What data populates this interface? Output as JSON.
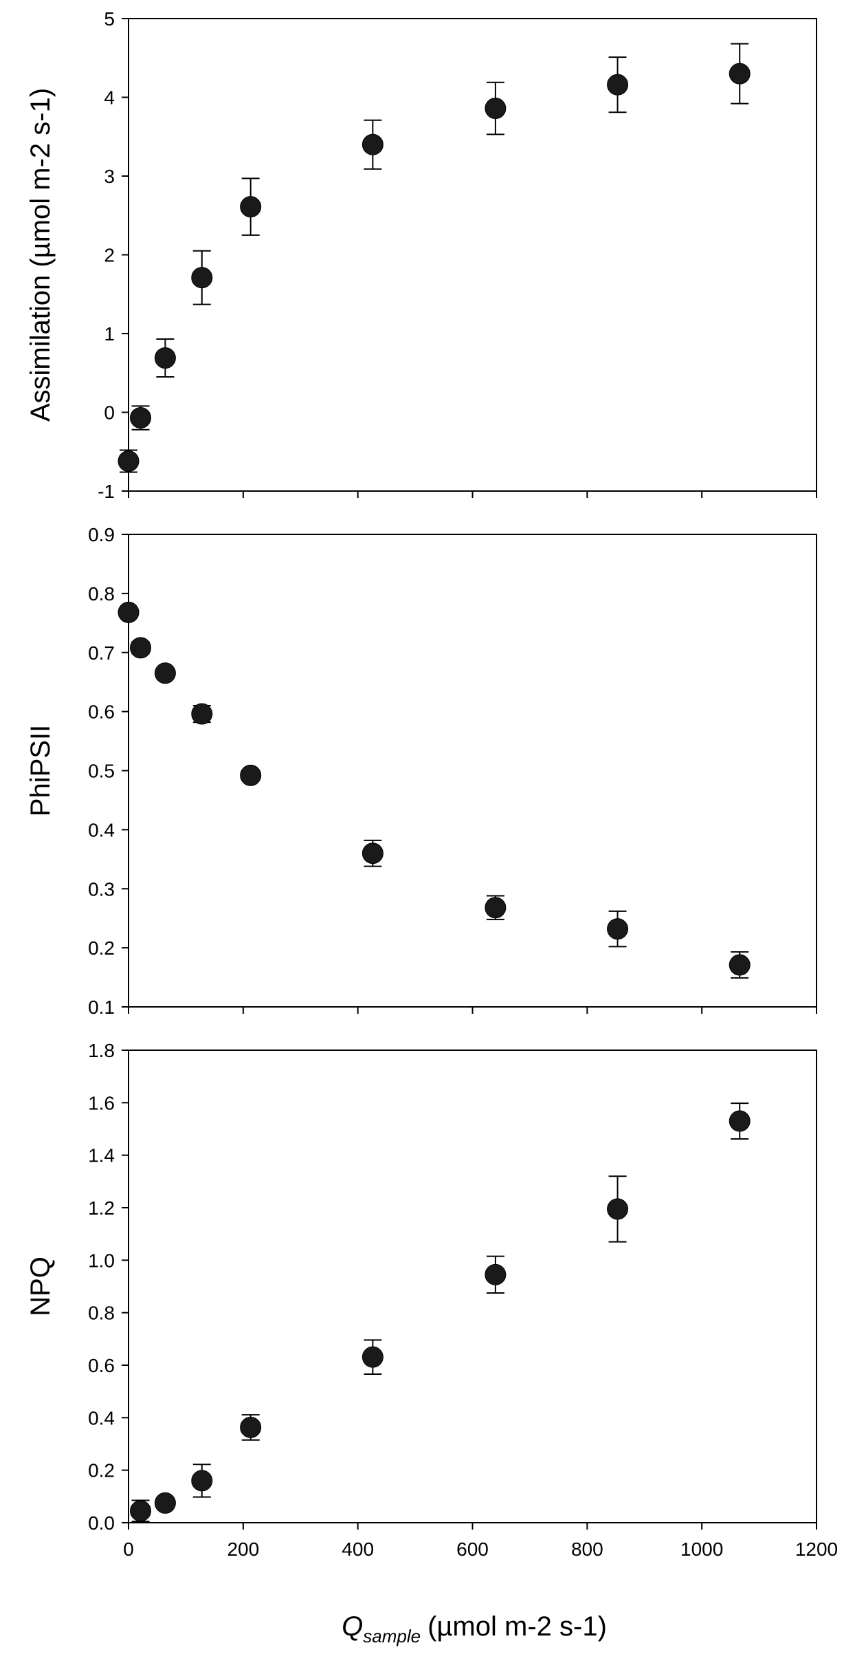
{
  "chart_data": [
    {
      "type": "scatter",
      "ylabel": "Assimilation (µmol m-2 s-1)",
      "xlim": [
        0,
        1200
      ],
      "ylim": [
        -1,
        5
      ],
      "yticks": [
        "-1",
        "0",
        "1",
        "2",
        "3",
        "4",
        "5"
      ],
      "xticks": [],
      "x": [
        0,
        21,
        64,
        128,
        213,
        426,
        640,
        853,
        1066
      ],
      "y": [
        -0.62,
        -0.07,
        0.69,
        1.71,
        2.61,
        3.4,
        3.86,
        4.16,
        4.3
      ],
      "yerr": [
        0.14,
        0.15,
        0.24,
        0.34,
        0.36,
        0.31,
        0.33,
        0.35,
        0.38
      ]
    },
    {
      "type": "scatter",
      "ylabel": "PhiPSII",
      "xlim": [
        0,
        1200
      ],
      "ylim": [
        0.1,
        0.9
      ],
      "yticks": [
        "0.1",
        "0.2",
        "0.3",
        "0.4",
        "0.5",
        "0.6",
        "0.7",
        "0.8",
        "0.9"
      ],
      "xticks": [],
      "x": [
        0,
        21,
        64,
        128,
        213,
        426,
        640,
        853,
        1066
      ],
      "y": [
        0.768,
        0.708,
        0.665,
        0.596,
        0.492,
        0.36,
        0.268,
        0.232,
        0.171
      ],
      "yerr": [
        0.005,
        0.01,
        0.006,
        0.014,
        0.007,
        0.022,
        0.02,
        0.03,
        0.022
      ]
    },
    {
      "type": "scatter",
      "ylabel": "NPQ",
      "xlim": [
        0,
        1200
      ],
      "ylim": [
        0.0,
        1.8
      ],
      "yticks": [
        "0.0",
        "0.2",
        "0.4",
        "0.6",
        "0.8",
        "1.0",
        "1.2",
        "1.4",
        "1.6",
        "1.8"
      ],
      "xticks": [
        "0",
        "200",
        "400",
        "600",
        "800",
        "1000",
        "1200"
      ],
      "x": [
        21,
        64,
        128,
        213,
        426,
        640,
        853,
        1066
      ],
      "y": [
        0.045,
        0.075,
        0.16,
        0.363,
        0.631,
        0.945,
        1.195,
        1.53
      ],
      "yerr": [
        0.04,
        0.02,
        0.062,
        0.048,
        0.065,
        0.07,
        0.125,
        0.068
      ]
    }
  ],
  "xlabel": {
    "main": "Q",
    "subscript": "sample",
    "units": "(µmol m-2 s-1)"
  }
}
